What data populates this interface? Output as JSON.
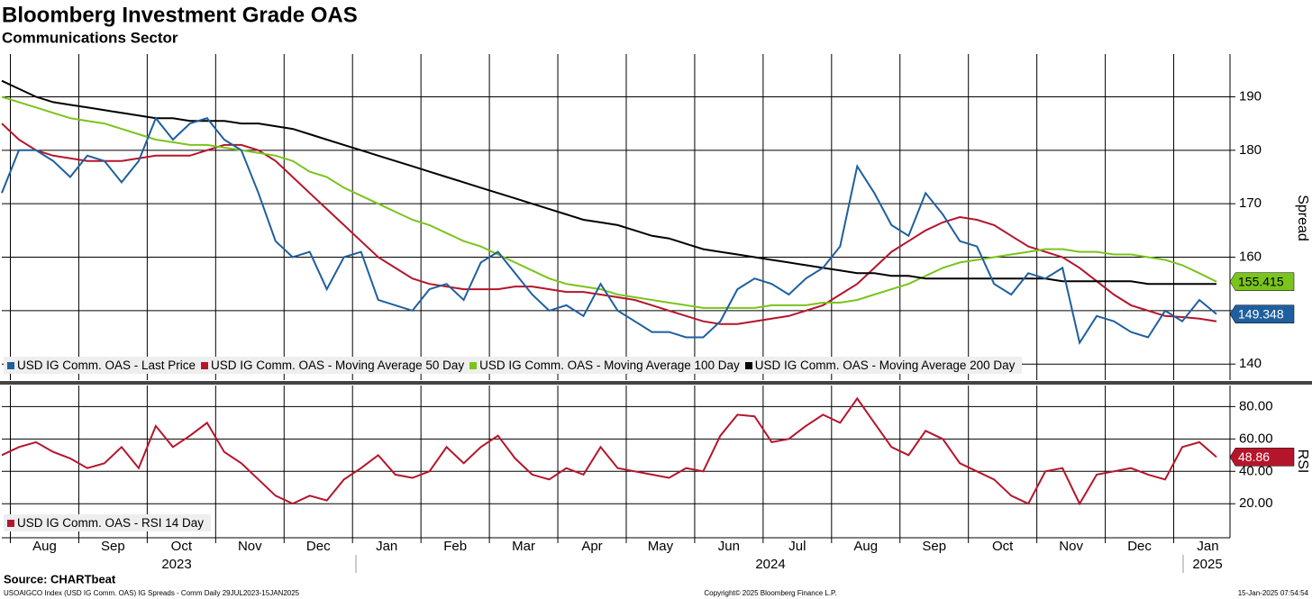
{
  "title": "Bloomberg Investment Grade OAS",
  "subtitle": "Communications Sector",
  "chart_data": [
    {
      "type": "line",
      "ylabel": "Spread",
      "ylim": [
        137,
        198
      ],
      "yticks": [
        140,
        150,
        160,
        170,
        180,
        190
      ],
      "grid": true,
      "legend": "bottom-left",
      "series": [
        {
          "name": "USD IG Comm. OAS - Last Price",
          "color": "#1f5f9e",
          "values": [
            172,
            180,
            180,
            178,
            175,
            179,
            178,
            174,
            178,
            186,
            182,
            185,
            186,
            182,
            180,
            172,
            163,
            160,
            161,
            154,
            160,
            161,
            152,
            151,
            150,
            154,
            155,
            152,
            159,
            161,
            157,
            153,
            150,
            151,
            149,
            155,
            150,
            148,
            146,
            146,
            145,
            145,
            148,
            154,
            156,
            155,
            153,
            156,
            158,
            162,
            177,
            172,
            166,
            164,
            172,
            168,
            163,
            162,
            155,
            153,
            157,
            156,
            158,
            144,
            149,
            148,
            146,
            145,
            150,
            148,
            152,
            149.348
          ]
        },
        {
          "name": "USD IG Comm. OAS - Moving Average 50 Day",
          "color": "#b5152b",
          "values": [
            185,
            182,
            180,
            179,
            178.5,
            178,
            178,
            178,
            178.5,
            179,
            179,
            179,
            180,
            181,
            181,
            180,
            178,
            175,
            172,
            169,
            166,
            163,
            160,
            158,
            156,
            155,
            154.5,
            154,
            154,
            154,
            154.5,
            154.5,
            154,
            153.5,
            153.5,
            153,
            152.5,
            152,
            151,
            150,
            149,
            148,
            147.5,
            147.5,
            148,
            148.5,
            149,
            150,
            151,
            153,
            155,
            158,
            161,
            163,
            165,
            166.5,
            167.5,
            167,
            166,
            164,
            162,
            161,
            160,
            158,
            155.5,
            153,
            151,
            150,
            149,
            148.8,
            148.5,
            148
          ]
        },
        {
          "name": "USD IG Comm. OAS - Moving Average 100 Day",
          "color": "#7ac41c",
          "values": [
            190,
            189,
            188,
            187,
            186,
            185.5,
            185,
            184,
            183,
            182,
            181.5,
            181,
            181,
            180.5,
            180,
            179.5,
            179,
            178,
            176,
            175,
            173,
            171.5,
            170,
            168.5,
            167,
            166,
            164.5,
            163,
            162,
            160.5,
            159,
            157.5,
            156,
            155,
            154.5,
            154,
            153,
            152.5,
            152,
            151.5,
            151,
            150.5,
            150.5,
            150.5,
            150.5,
            151,
            151,
            151,
            151.5,
            151.5,
            152,
            153,
            154,
            155,
            156.5,
            158,
            159,
            159.5,
            160,
            160.5,
            161,
            161.5,
            161.5,
            161,
            161,
            160.5,
            160.5,
            160,
            159.5,
            158.5,
            157,
            155.415
          ]
        },
        {
          "name": "USD IG Comm. OAS - Moving Average 200 Day",
          "color": "#000000",
          "values": [
            193,
            191.5,
            190,
            189,
            188.5,
            188,
            187.5,
            187,
            186.5,
            186,
            186,
            185.5,
            185.5,
            185.5,
            185,
            185,
            184.5,
            184,
            183,
            182,
            181,
            180,
            179,
            178,
            177,
            176,
            175,
            174,
            173,
            172,
            171,
            170,
            169,
            168,
            167,
            166.5,
            166,
            165,
            164,
            163.5,
            162.5,
            161.5,
            161,
            160.5,
            160,
            159.5,
            159,
            158.5,
            158,
            157.5,
            157,
            157,
            156.5,
            156.5,
            156,
            156,
            156,
            156,
            156,
            156,
            156,
            156,
            155.5,
            155.5,
            155.5,
            155.5,
            155.5,
            155,
            155,
            155,
            155,
            155
          ]
        }
      ]
    },
    {
      "type": "line",
      "ylabel": "RSI",
      "ylim": [
        -1,
        93
      ],
      "yticks": [
        {
          "value": 20,
          "label": "20.00"
        },
        {
          "value": 40,
          "label": "40.00"
        },
        {
          "value": 60,
          "label": "60.00"
        },
        {
          "value": 80,
          "label": "80.00"
        }
      ],
      "grid": true,
      "legend": "bottom-left",
      "categories": [
        null,
        null,
        "Aug",
        null,
        null,
        null,
        "Sep",
        null,
        null,
        null,
        "Oct",
        null,
        null,
        null,
        "Nov",
        null,
        null,
        null,
        "Dec",
        null,
        null,
        null,
        "Jan",
        null,
        null,
        null,
        "Feb",
        null,
        null,
        null,
        "Mar",
        null,
        null,
        null,
        "Apr",
        null,
        null,
        null,
        "May",
        null,
        null,
        null,
        "Jun",
        null,
        null,
        null,
        "Jul",
        null,
        null,
        null,
        "Aug",
        null,
        null,
        null,
        "Sep",
        null,
        null,
        null,
        "Oct",
        null,
        null,
        null,
        "Nov",
        null,
        null,
        null,
        "Dec",
        null,
        null,
        null,
        "Jan",
        null
      ],
      "year_labels": [
        "2023",
        "2024",
        "2025"
      ],
      "series": [
        {
          "name": "USD IG Comm. OAS - RSI 14 Day",
          "color": "#b5152b",
          "values": [
            50,
            55,
            58,
            52,
            48,
            42,
            45,
            55,
            42,
            68,
            55,
            62,
            70,
            52,
            45,
            35,
            25,
            20,
            25,
            22,
            35,
            42,
            50,
            38,
            36,
            40,
            55,
            45,
            55,
            62,
            48,
            38,
            35,
            42,
            38,
            55,
            42,
            40,
            38,
            36,
            42,
            40,
            62,
            75,
            74,
            58,
            60,
            68,
            75,
            70,
            85,
            70,
            55,
            50,
            65,
            60,
            45,
            40,
            35,
            25,
            20,
            40,
            42,
            20,
            38,
            40,
            42,
            38,
            35,
            55,
            58,
            48.86
          ]
        }
      ]
    }
  ],
  "footer": {
    "source": "Source: CHARTbeat",
    "description": "USOAIGCO Index (USD IG Comm. OAS) IG Spreads - Comm  Daily 29JUL2023-15JAN2025",
    "copyright": "Copyright© 2025 Bloomberg Finance L.P.",
    "timestamp": "15-Jan-2025 07:54:54"
  }
}
